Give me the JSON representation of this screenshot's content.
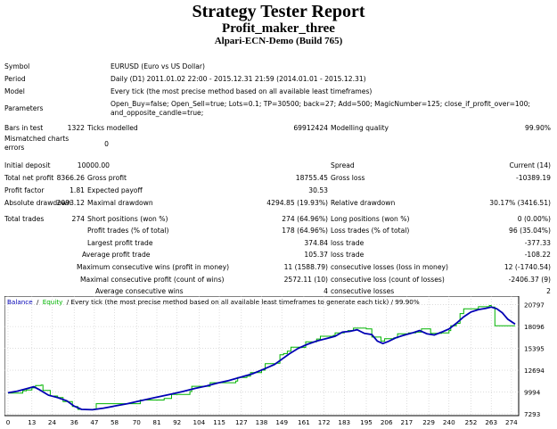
{
  "report": {
    "title": "Strategy Tester Report",
    "expert": "Profit_maker_three",
    "server": "Alpari-ECN-Demo (Build 765)"
  },
  "settings": {
    "symbol_label": "Symbol",
    "symbol": "EURUSD (Euro vs US Dollar)",
    "period_label": "Period",
    "period": "Daily (D1) 2011.01.02 22:00 - 2015.12.31 21:59 (2014.01.01 - 2015.12.31)",
    "model_label": "Model",
    "model": "Every tick (the most precise method based on all available least timeframes)",
    "parameters_label": "Parameters",
    "parameters_line1": "Open_Buy=false; Open_Sell=true; Lots=0.1; TP=30500; back=27; Add=500; MagicNumber=125; close_if_profit_over=100;",
    "parameters_line2": "and_opposite_candle=true;",
    "bars_label": "Bars in test",
    "bars": "1322",
    "ticks_label": "Ticks modelled",
    "ticks": "69912424",
    "quality_label": "Modelling quality",
    "quality": "99.90%",
    "mismatched_label_1": "Mismatched charts",
    "mismatched_label_2": "errors",
    "mismatched": "0"
  },
  "results": {
    "initial_deposit_label": "Initial deposit",
    "initial_deposit": "10000.00",
    "spread_label": "Spread",
    "spread": "Current (14)",
    "net_profit_label": "Total net profit",
    "net_profit": "8366.26",
    "gross_profit_label": "Gross profit",
    "gross_profit": "18755.45",
    "gross_loss_label": "Gross loss",
    "gross_loss": "-10389.19",
    "profit_factor_label": "Profit factor",
    "profit_factor": "1.81",
    "expected_payoff_label": "Expected payoff",
    "expected_payoff": "30.53",
    "abs_dd_label": "Absolute drawdown",
    "abs_dd": "2093.12",
    "max_dd_label": "Maximal drawdown",
    "max_dd": "4294.85 (19.93%)",
    "rel_dd_label": "Relative drawdown",
    "rel_dd": "30.17% (3416.51)",
    "total_trades_label": "Total trades",
    "total_trades": "274",
    "short_label": "Short positions (won %)",
    "short": "274 (64.96%)",
    "long_label": "Long positions (won %)",
    "long": "0 (0.00%)",
    "profit_trades_label": "Profit trades (% of total)",
    "profit_trades": "178 (64.96%)",
    "loss_trades_label": "Loss trades (% of total)",
    "loss_trades": "96 (35.04%)",
    "largest_profit_label": "Largest  profit trade",
    "largest_profit": "374.84",
    "largest_loss_label": "loss trade",
    "largest_loss": "-377.33",
    "average_profit_label": "Average  profit trade",
    "average_profit": "105.37",
    "average_loss_label": "loss trade",
    "average_loss": "-108.22",
    "max_cons_wins_label": "Maximum  consecutive wins (profit in money)",
    "max_cons_wins": "11 (1588.79)",
    "max_cons_losses_label": "consecutive losses (loss in money)",
    "max_cons_losses": "12 (-1740.54)",
    "maximal_cons_profit_label": "Maximal  consecutive profit (count of wins)",
    "maximal_cons_profit": "2572.11 (10)",
    "maximal_cons_loss_label": "consecutive loss (count of losses)",
    "maximal_cons_loss": "-2406.37 (9)",
    "avg_cons_wins_label": "Average  consecutive wins",
    "avg_cons_wins": "4",
    "avg_cons_losses_label": "consecutive losses",
    "avg_cons_losses": "2"
  },
  "chart_data": {
    "type": "line",
    "legend": {
      "balance": "Balance",
      "sep1": "/",
      "equity": "Equity",
      "rest": "/ Every tick (the most precise method based on all available least timeframes to generate each tick)  /  99.90%"
    },
    "colors": {
      "balance": "#0000b4",
      "equity": "#00b400",
      "grid": "#c8c8c8"
    },
    "x_ticks": [
      0,
      13,
      24,
      36,
      47,
      58,
      70,
      81,
      92,
      104,
      115,
      127,
      138,
      149,
      161,
      172,
      183,
      195,
      206,
      217,
      229,
      240,
      252,
      263,
      274
    ],
    "y_ticks": [
      7293,
      9994,
      12694,
      15395,
      18096,
      20797
    ],
    "ylim": [
      7293,
      21200
    ],
    "xlim": [
      0,
      276
    ],
    "series": [
      {
        "name": "Balance",
        "color": "#0000b4",
        "points": [
          [
            0,
            9900
          ],
          [
            5,
            10100
          ],
          [
            10,
            10400
          ],
          [
            14,
            10650
          ],
          [
            17,
            10300
          ],
          [
            22,
            9600
          ],
          [
            27,
            9300
          ],
          [
            32,
            8900
          ],
          [
            36,
            8250
          ],
          [
            40,
            7850
          ],
          [
            46,
            7800
          ],
          [
            52,
            8000
          ],
          [
            58,
            8250
          ],
          [
            65,
            8550
          ],
          [
            72,
            8900
          ],
          [
            80,
            9300
          ],
          [
            88,
            9700
          ],
          [
            95,
            10050
          ],
          [
            102,
            10450
          ],
          [
            108,
            10750
          ],
          [
            114,
            11100
          ],
          [
            120,
            11400
          ],
          [
            126,
            11800
          ],
          [
            133,
            12250
          ],
          [
            139,
            12800
          ],
          [
            145,
            13400
          ],
          [
            149,
            14050
          ],
          [
            153,
            14700
          ],
          [
            158,
            15400
          ],
          [
            163,
            15900
          ],
          [
            168,
            16300
          ],
          [
            173,
            16600
          ],
          [
            178,
            16900
          ],
          [
            182,
            17400
          ],
          [
            186,
            17500
          ],
          [
            190,
            17700
          ],
          [
            194,
            17250
          ],
          [
            198,
            17100
          ],
          [
            201,
            16300
          ],
          [
            204,
            16000
          ],
          [
            207,
            16250
          ],
          [
            211,
            16700
          ],
          [
            215,
            17000
          ],
          [
            220,
            17300
          ],
          [
            224,
            17600
          ],
          [
            228,
            17200
          ],
          [
            232,
            17050
          ],
          [
            236,
            17400
          ],
          [
            240,
            17800
          ],
          [
            244,
            18500
          ],
          [
            248,
            19300
          ],
          [
            252,
            19900
          ],
          [
            256,
            20200
          ],
          [
            260,
            20350
          ],
          [
            263,
            20500
          ],
          [
            266,
            20300
          ],
          [
            269,
            19800
          ],
          [
            272,
            19000
          ],
          [
            276,
            18400
          ]
        ]
      },
      {
        "name": "Equity",
        "color": "#00b400",
        "points": [
          [
            0,
            9850
          ],
          [
            8,
            10150
          ],
          [
            10,
            10250
          ],
          [
            13,
            10500
          ],
          [
            15,
            10800
          ],
          [
            18,
            10850
          ],
          [
            19,
            10200
          ],
          [
            23,
            9500
          ],
          [
            27,
            9300
          ],
          [
            30,
            8800
          ],
          [
            33,
            8800
          ],
          [
            35,
            8200
          ],
          [
            38,
            7850
          ],
          [
            44,
            7800
          ],
          [
            47,
            7900
          ],
          [
            48,
            8550
          ],
          [
            58,
            8550
          ],
          [
            70,
            8550
          ],
          [
            72,
            9000
          ],
          [
            85,
            9200
          ],
          [
            89,
            9700
          ],
          [
            99,
            10050
          ],
          [
            100,
            10700
          ],
          [
            108,
            10700
          ],
          [
            110,
            11150
          ],
          [
            124,
            11350
          ],
          [
            125,
            11800
          ],
          [
            130,
            11950
          ],
          [
            132,
            12400
          ],
          [
            138,
            12700
          ],
          [
            140,
            13500
          ],
          [
            146,
            13550
          ],
          [
            148,
            14600
          ],
          [
            150,
            14750
          ],
          [
            152,
            15050
          ],
          [
            154,
            15550
          ],
          [
            160,
            15500
          ],
          [
            162,
            16200
          ],
          [
            165,
            16200
          ],
          [
            168,
            16550
          ],
          [
            170,
            16900
          ],
          [
            177,
            17000
          ],
          [
            178,
            17300
          ],
          [
            183,
            17450
          ],
          [
            185,
            17600
          ],
          [
            188,
            17900
          ],
          [
            195,
            17800
          ],
          [
            198,
            16800
          ],
          [
            203,
            16300
          ],
          [
            205,
            16600
          ],
          [
            210,
            16700
          ],
          [
            212,
            17200
          ],
          [
            218,
            17300
          ],
          [
            222,
            17400
          ],
          [
            225,
            17800
          ],
          [
            230,
            17250
          ],
          [
            236,
            17300
          ],
          [
            240,
            17600
          ],
          [
            241,
            18200
          ],
          [
            244,
            18500
          ],
          [
            246,
            19700
          ],
          [
            248,
            20300
          ],
          [
            256,
            20550
          ],
          [
            262,
            20700
          ],
          [
            263,
            20500
          ],
          [
            265,
            18200
          ],
          [
            276,
            18200
          ]
        ]
      }
    ]
  }
}
